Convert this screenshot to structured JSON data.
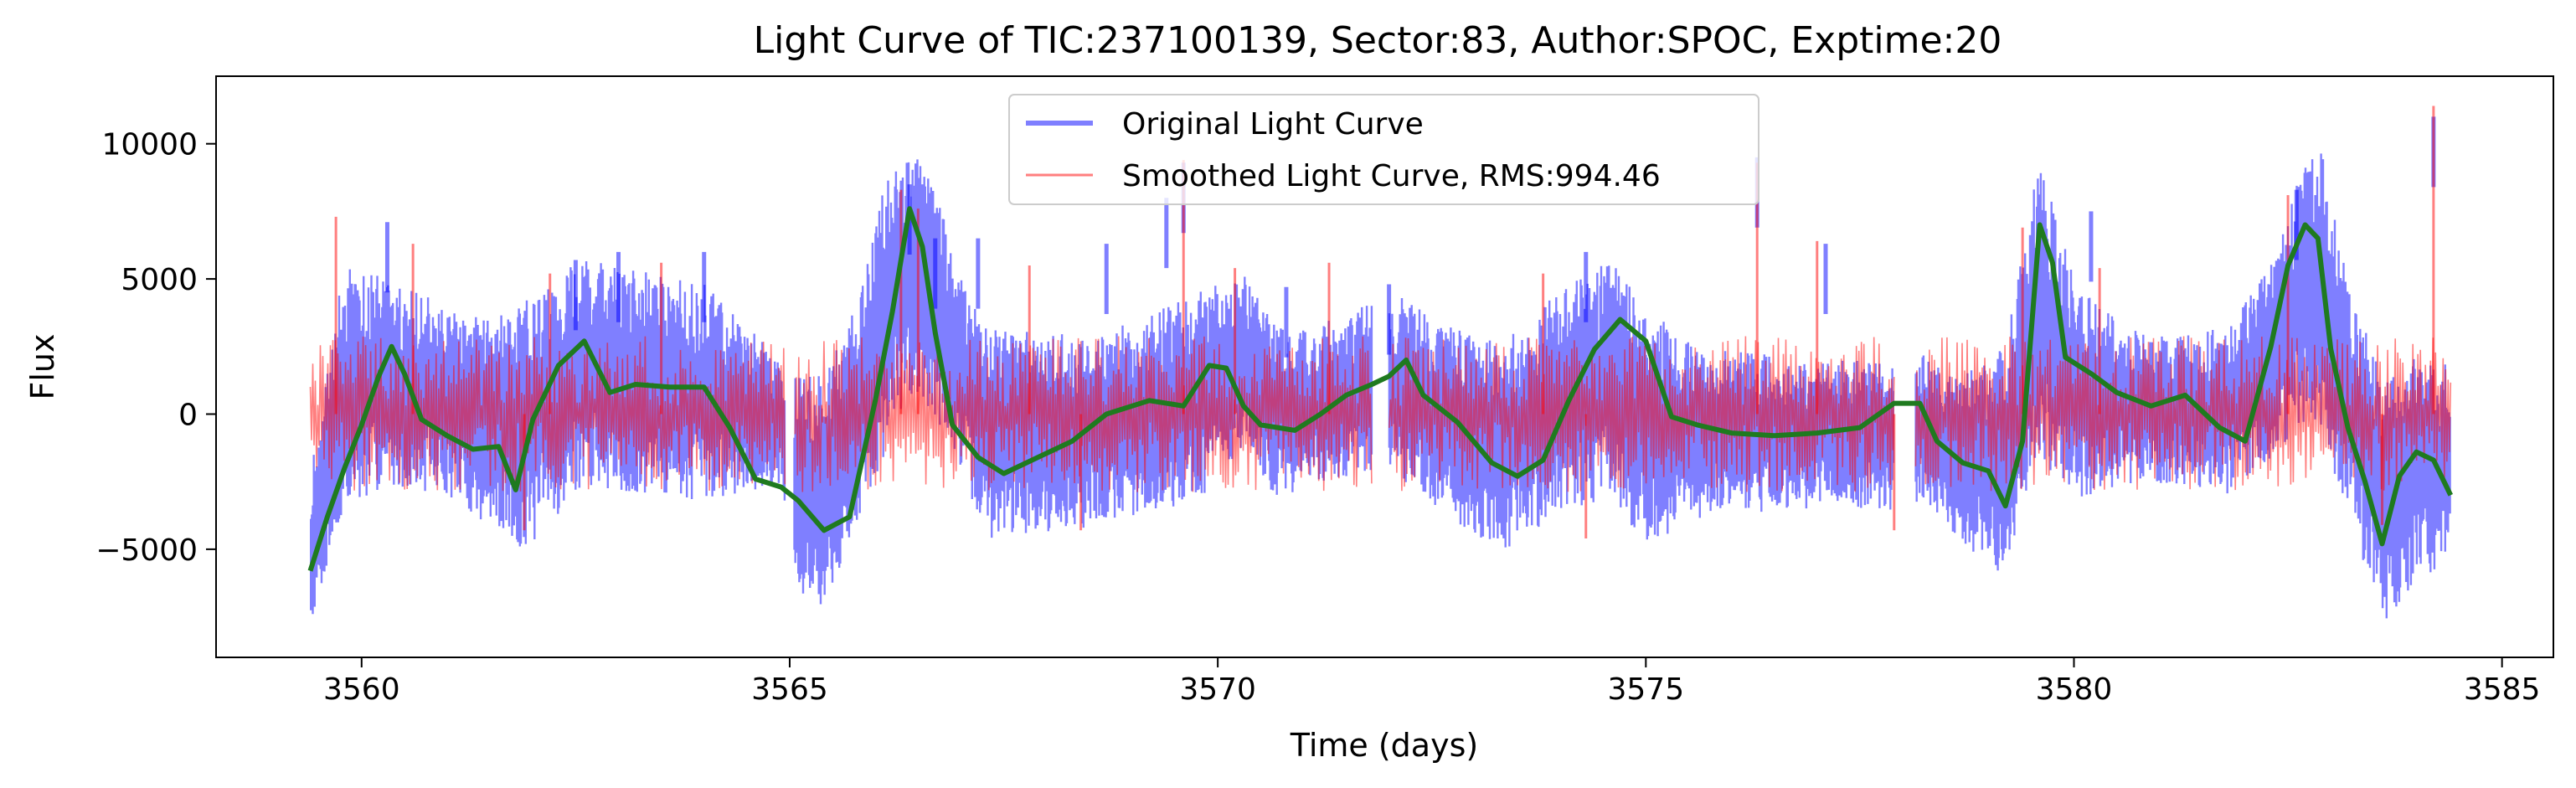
{
  "chart_data": {
    "type": "line",
    "title": "Light Curve of TIC:237100139, Sector:83, Author:SPOC, Exptime:20",
    "xlabel": "Time (days)",
    "ylabel": "Flux",
    "xlim": [
      3558.3,
      3585.6
    ],
    "ylim": [
      -9000,
      12500
    ],
    "x_ticks": [
      3560,
      3565,
      3570,
      3575,
      3580,
      3585
    ],
    "y_ticks": [
      -5000,
      0,
      5000,
      10000
    ],
    "y_tick_labels": [
      "−5000",
      "0",
      "5000",
      "10000"
    ],
    "legend_position": "upper center",
    "grid": false,
    "series": [
      {
        "name": "Original Light Curve",
        "color": "#0000ff",
        "render": "envelope",
        "time_ranges": [
          [
            3559.4,
            3564.95
          ],
          [
            3565.05,
            3571.8
          ],
          [
            3572.0,
            3577.9
          ],
          [
            3578.15,
            3584.4
          ]
        ],
        "anchors_x": [
          3559.4,
          3559.8,
          3560.3,
          3561.0,
          3561.5,
          3561.9,
          3562.6,
          3563.2,
          3564.0,
          3564.9,
          3565.0,
          3565.4,
          3565.8,
          3566.2,
          3566.5,
          3566.9,
          3567.3,
          3567.8,
          3568.5,
          3569.3,
          3569.8,
          3570.3,
          3570.7,
          3571.1,
          3571.7,
          3572.1,
          3572.6,
          3573.3,
          3574.0,
          3574.6,
          3575.0,
          3575.7,
          3576.5,
          3577.3,
          3577.9,
          3578.2,
          3578.6,
          3579.2,
          3579.6,
          3580.0,
          3580.6,
          3581.2,
          3581.8,
          3582.3,
          3582.8,
          3583.2,
          3583.6,
          3584.0,
          3584.4
        ],
        "anchors_low": [
          -7800,
          -3800,
          -2600,
          -3000,
          -4200,
          -5200,
          -2600,
          -3000,
          -3200,
          -2600,
          -6800,
          -7200,
          -4000,
          -800,
          800,
          -1200,
          -4600,
          -4400,
          -4200,
          -3600,
          -3200,
          -1200,
          -3200,
          -2600,
          -2200,
          -2400,
          -3600,
          -5200,
          -3600,
          -3200,
          -4800,
          -3800,
          -3600,
          -3400,
          -3600,
          -3200,
          -4600,
          -6000,
          -1800,
          -3200,
          -2600,
          -2600,
          -3000,
          -1600,
          -200,
          -3600,
          -7800,
          -6200,
          -5800
        ],
        "anchors_high": [
          -2200,
          5600,
          5000,
          4000,
          3500,
          4200,
          5800,
          5400,
          4800,
          2000,
          1600,
          1400,
          4200,
          9800,
          10600,
          6200,
          3200,
          3300,
          2800,
          3800,
          4600,
          5200,
          3200,
          3200,
          4000,
          4400,
          3400,
          2600,
          4600,
          5800,
          4000,
          2400,
          2200,
          2000,
          2200,
          2400,
          1400,
          2600,
          9600,
          5000,
          3200,
          3000,
          3200,
          5600,
          11000,
          5400,
          1600,
          2200,
          2000
        ],
        "spikes": [
          [
            3560.3,
            7100
          ],
          [
            3562.5,
            5700
          ],
          [
            3563.0,
            6000
          ],
          [
            3564.0,
            6000
          ],
          [
            3566.4,
            8500
          ],
          [
            3566.7,
            6500
          ],
          [
            3567.2,
            6500
          ],
          [
            3568.7,
            6300
          ],
          [
            3569.4,
            8000
          ],
          [
            3569.6,
            9300
          ],
          [
            3570.8,
            4700
          ],
          [
            3572.0,
            4800
          ],
          [
            3574.3,
            6000
          ],
          [
            3576.3,
            9500
          ],
          [
            3577.1,
            6300
          ],
          [
            3580.2,
            7500
          ],
          [
            3582.6,
            8300
          ],
          [
            3584.2,
            11000
          ]
        ]
      },
      {
        "name": "Smoothed Light Curve, RMS:994.46",
        "color": "#ff0000",
        "render": "noise",
        "rms": 994.46,
        "time_ranges": [
          [
            3559.4,
            3564.95
          ],
          [
            3565.05,
            3571.8
          ],
          [
            3572.0,
            3577.9
          ],
          [
            3578.15,
            3584.4
          ]
        ],
        "spikes": [
          [
            3559.7,
            7300
          ],
          [
            3560.6,
            6300
          ],
          [
            3562.2,
            5200
          ],
          [
            3563.5,
            5600
          ],
          [
            3566.3,
            8300
          ],
          [
            3566.5,
            7600
          ],
          [
            3567.8,
            5500
          ],
          [
            3569.6,
            9400
          ],
          [
            3570.2,
            5400
          ],
          [
            3571.3,
            5600
          ],
          [
            3573.8,
            5200
          ],
          [
            3576.3,
            9300
          ],
          [
            3577.0,
            6400
          ],
          [
            3579.4,
            6900
          ],
          [
            3580.3,
            5400
          ],
          [
            3582.5,
            8100
          ],
          [
            3584.2,
            11400
          ]
        ],
        "dips": [
          [
            3561.9,
            -4300
          ],
          [
            3568.4,
            -4300
          ],
          [
            3574.3,
            -4600
          ],
          [
            3577.9,
            -4300
          ],
          [
            3583.6,
            -4100
          ]
        ]
      },
      {
        "color": "#1f7a1f",
        "render": "line",
        "x": [
          3559.4,
          3559.6,
          3559.8,
          3560.0,
          3560.2,
          3560.35,
          3560.5,
          3560.7,
          3561.0,
          3561.3,
          3561.6,
          3561.8,
          3562.0,
          3562.3,
          3562.6,
          3562.9,
          3563.2,
          3563.6,
          3564.0,
          3564.3,
          3564.6,
          3564.9,
          3565.1,
          3565.4,
          3565.7,
          3566.0,
          3566.2,
          3566.4,
          3566.55,
          3566.7,
          3566.9,
          3567.2,
          3567.5,
          3567.9,
          3568.3,
          3568.7,
          3569.2,
          3569.6,
          3569.9,
          3570.1,
          3570.3,
          3570.5,
          3570.7,
          3570.9,
          3571.2,
          3571.5,
          3571.8,
          3572.0,
          3572.2,
          3572.4,
          3572.8,
          3573.2,
          3573.5,
          3573.8,
          3574.1,
          3574.4,
          3574.7,
          3575.0,
          3575.3,
          3575.6,
          3576.0,
          3576.5,
          3577.0,
          3577.5,
          3577.9,
          3578.2,
          3578.4,
          3578.7,
          3579.0,
          3579.2,
          3579.4,
          3579.6,
          3579.75,
          3579.9,
          3580.2,
          3580.5,
          3580.9,
          3581.3,
          3581.7,
          3582.0,
          3582.3,
          3582.5,
          3582.7,
          3582.85,
          3583.0,
          3583.2,
          3583.4,
          3583.6,
          3583.8,
          3584.0,
          3584.2,
          3584.4
        ],
        "y": [
          -5800,
          -3800,
          -2000,
          -400,
          1400,
          2500,
          1500,
          -200,
          -800,
          -1300,
          -1200,
          -2800,
          -200,
          1800,
          2700,
          800,
          1100,
          1000,
          1000,
          -500,
          -2400,
          -2700,
          -3200,
          -4300,
          -3800,
          500,
          3800,
          7600,
          6200,
          3000,
          -400,
          -1600,
          -2200,
          -1600,
          -1000,
          0,
          500,
          300,
          1800,
          1700,
          300,
          -400,
          -500,
          -600,
          0,
          700,
          1100,
          1400,
          2000,
          700,
          -300,
          -1800,
          -2300,
          -1700,
          500,
          2400,
          3500,
          2700,
          -100,
          -400,
          -700,
          -800,
          -700,
          -500,
          400,
          400,
          -1000,
          -1800,
          -2100,
          -3400,
          -1000,
          7000,
          5600,
          2100,
          1500,
          800,
          300,
          700,
          -500,
          -1000,
          2500,
          5500,
          7000,
          6500,
          2400,
          -500,
          -2500,
          -4800,
          -2300,
          -1400,
          -1700,
          -3000
        ]
      }
    ]
  }
}
